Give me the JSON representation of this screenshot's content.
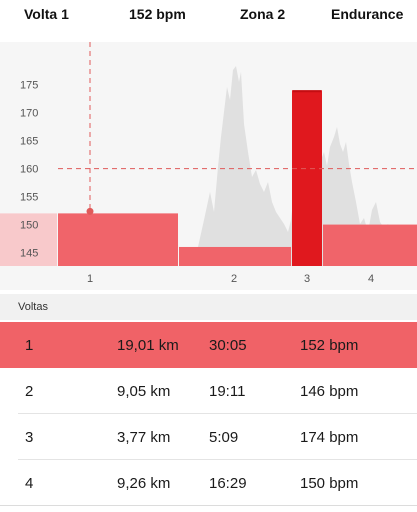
{
  "header": {
    "lap": "Volta 1",
    "hr": "152 bpm",
    "zone": "Zona 2",
    "zone_name": "Endurance"
  },
  "chart_data": {
    "type": "bar",
    "title": "",
    "xlabel": "",
    "ylabel": "",
    "ylim": [
      143,
      180
    ],
    "yticks": [
      145,
      150,
      155,
      160,
      165,
      170,
      175
    ],
    "categories": [
      "1",
      "2",
      "3",
      "4"
    ],
    "values": [
      152,
      146,
      174,
      150
    ],
    "selected_category": "1",
    "reference_line": 160,
    "colors": {
      "bar": "#f0646a",
      "bar_selected": "#f0646a",
      "bar_peak": "#e0181e",
      "area": "#dcdcdc",
      "reference": "#e05a5a"
    }
  },
  "laps": {
    "section_label": "Voltas",
    "rows": [
      {
        "n": "1",
        "dist": "19,01 km",
        "time": "30:05",
        "hr": "152 bpm"
      },
      {
        "n": "2",
        "dist": "9,05 km",
        "time": "19:11",
        "hr": "146 bpm"
      },
      {
        "n": "3",
        "dist": "3,77 km",
        "time": "5:09",
        "hr": "174 bpm"
      },
      {
        "n": "4",
        "dist": "9,26 km",
        "time": "16:29",
        "hr": "150 bpm"
      }
    ],
    "selected_index": 0,
    "selected_color": "#f06267"
  }
}
